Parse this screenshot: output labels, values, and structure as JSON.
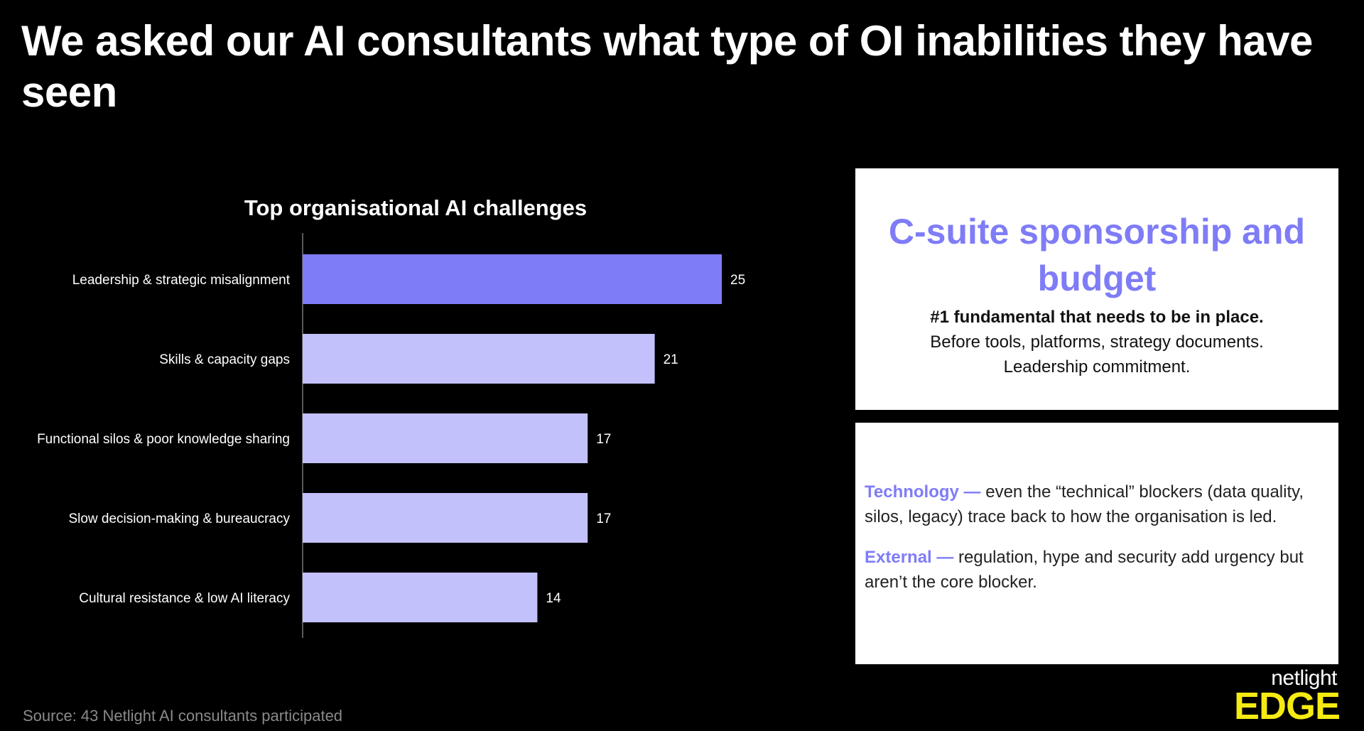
{
  "title": "We asked our AI consultants what type of OI inabilities they have seen",
  "chart_data": {
    "type": "bar",
    "orientation": "horizontal",
    "title": "Top organisational AI challenges",
    "categories": [
      "Leadership & strategic misalignment",
      "Skills & capacity gaps",
      "Functional silos & poor knowledge sharing",
      "Slow decision-making & bureaucracy",
      "Cultural resistance & low AI literacy"
    ],
    "values": [
      25,
      21,
      17,
      17,
      14
    ],
    "highlight_color": "#7f7cf7",
    "bar_color": "#c3c1fb",
    "xlim": [
      0,
      25
    ],
    "grid": false,
    "legend": "none"
  },
  "card1": {
    "headline": "C-suite sponsorship and budget",
    "strong": "#1 fundamental that needs to be in place.",
    "line1": "Before tools, platforms, strategy documents.",
    "line2": "Leadership commitment."
  },
  "card2": {
    "tech_key": "Technology —",
    "tech_text": " even the “technical” blockers (data quality, silos, legacy) trace back to how the organisation is led.",
    "ext_key": "External —",
    "ext_text": " regulation, hype and security add urgency but aren’t the core blocker."
  },
  "source": "Source: 43 Netlight AI consultants participated",
  "logo": {
    "top": "netlight",
    "bottom": "EDGE"
  }
}
